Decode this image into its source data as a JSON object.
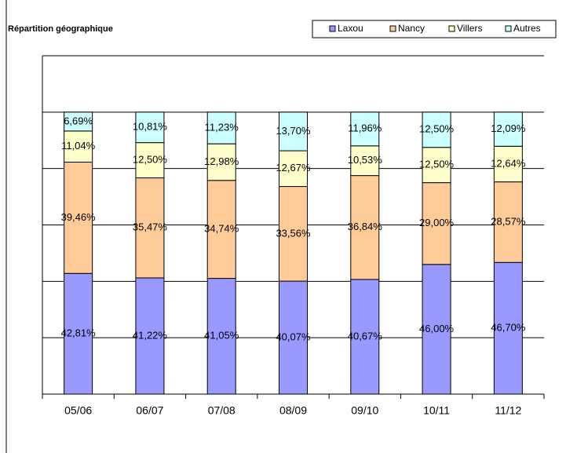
{
  "chart_data": {
    "type": "stacked_bar",
    "title": "Répartition géographique",
    "categories": [
      "05/06",
      "06/07",
      "07/08",
      "08/09",
      "09/10",
      "10/11",
      "11/12"
    ],
    "series": [
      {
        "name": "Laxou",
        "color": "#9999ff",
        "values": [
          42.81,
          41.22,
          41.05,
          40.07,
          40.67,
          46.0,
          46.7
        ],
        "value_labels": [
          "42,81%",
          "41,22%",
          "41,05%",
          "40,07%",
          "40,67%",
          "46,00%",
          "46,70%"
        ]
      },
      {
        "name": "Nancy",
        "color": "#ffcc99",
        "values": [
          39.46,
          35.47,
          34.74,
          33.56,
          36.84,
          29.0,
          28.57
        ],
        "value_labels": [
          "39,46%",
          "35,47%",
          "34,74%",
          "33,56%",
          "36,84%",
          "29,00%",
          "28,57%"
        ]
      },
      {
        "name": "Villers",
        "color": "#ffffcc",
        "values": [
          11.04,
          12.5,
          12.98,
          12.67,
          10.53,
          12.5,
          12.64
        ],
        "value_labels": [
          "11,04%",
          "12,50%",
          "12,98%",
          "12,67%",
          "10,53%",
          "12,50%",
          "12,64%"
        ]
      },
      {
        "name": "Autres",
        "color": "#ccffff",
        "values": [
          6.69,
          10.81,
          11.23,
          13.7,
          11.96,
          12.5,
          12.09
        ],
        "value_labels": [
          "6,69%",
          "10,81%",
          "11,23%",
          "13,70%",
          "11,96%",
          "12,50%",
          "12,09%"
        ]
      }
    ],
    "ylim": [
      0,
      120
    ],
    "yticks": [
      0,
      20,
      40,
      60,
      80,
      100,
      120
    ],
    "grid": true,
    "legend": "top-right"
  }
}
